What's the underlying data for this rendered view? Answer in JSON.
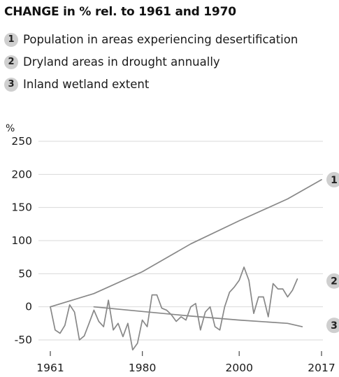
{
  "chart_data": {
    "type": "line",
    "title": "CHANGE in % rel. to 1961 and 1970",
    "ylabel": "%",
    "xlabel": "",
    "xlim": [
      1961,
      2017
    ],
    "ylim": [
      -50,
      250
    ],
    "yticks": [
      250,
      200,
      150,
      100,
      50,
      0,
      -50
    ],
    "xticks": [
      1961,
      1980,
      2000,
      2017
    ],
    "grid": true,
    "legend_placement": "top",
    "line_color": "#888888",
    "badge_color": "#cfcfcf",
    "series": [
      {
        "name": "Population in areas experiencing desertification",
        "id": "1",
        "points": [
          [
            1961,
            0
          ],
          [
            1970,
            20
          ],
          [
            1980,
            53
          ],
          [
            1990,
            95
          ],
          [
            2000,
            130
          ],
          [
            2010,
            163
          ],
          [
            2017,
            192
          ]
        ]
      },
      {
        "name": "Dryland areas in drought annually",
        "id": "2",
        "points": [
          [
            1961,
            0
          ],
          [
            1962,
            -35
          ],
          [
            1963,
            -40
          ],
          [
            1964,
            -28
          ],
          [
            1965,
            3
          ],
          [
            1966,
            -8
          ],
          [
            1967,
            -50
          ],
          [
            1968,
            -44
          ],
          [
            1969,
            -25
          ],
          [
            1970,
            -5
          ],
          [
            1971,
            -22
          ],
          [
            1972,
            -30
          ],
          [
            1973,
            10
          ],
          [
            1974,
            -35
          ],
          [
            1975,
            -25
          ],
          [
            1976,
            -45
          ],
          [
            1977,
            -25
          ],
          [
            1978,
            -65
          ],
          [
            1979,
            -55
          ],
          [
            1980,
            -20
          ],
          [
            1981,
            -30
          ],
          [
            1982,
            18
          ],
          [
            1983,
            18
          ],
          [
            1984,
            -2
          ],
          [
            1985,
            -5
          ],
          [
            1986,
            -12
          ],
          [
            1987,
            -22
          ],
          [
            1988,
            -15
          ],
          [
            1989,
            -20
          ],
          [
            1990,
            0
          ],
          [
            1991,
            5
          ],
          [
            1992,
            -35
          ],
          [
            1993,
            -8
          ],
          [
            1994,
            0
          ],
          [
            1995,
            -30
          ],
          [
            1996,
            -35
          ],
          [
            1997,
            0
          ],
          [
            1998,
            22
          ],
          [
            1999,
            30
          ],
          [
            2000,
            40
          ],
          [
            2001,
            60
          ],
          [
            2002,
            40
          ],
          [
            2003,
            -10
          ],
          [
            2004,
            15
          ],
          [
            2005,
            15
          ],
          [
            2006,
            -15
          ],
          [
            2007,
            35
          ],
          [
            2008,
            27
          ],
          [
            2009,
            27
          ],
          [
            2010,
            15
          ],
          [
            2011,
            25
          ],
          [
            2012,
            42
          ]
        ]
      },
      {
        "name": "Inland wetland extent",
        "id": "3",
        "points": [
          [
            1970,
            0
          ],
          [
            1980,
            -7
          ],
          [
            1990,
            -14
          ],
          [
            2000,
            -20
          ],
          [
            2010,
            -25
          ],
          [
            2013,
            -30
          ]
        ]
      }
    ]
  }
}
